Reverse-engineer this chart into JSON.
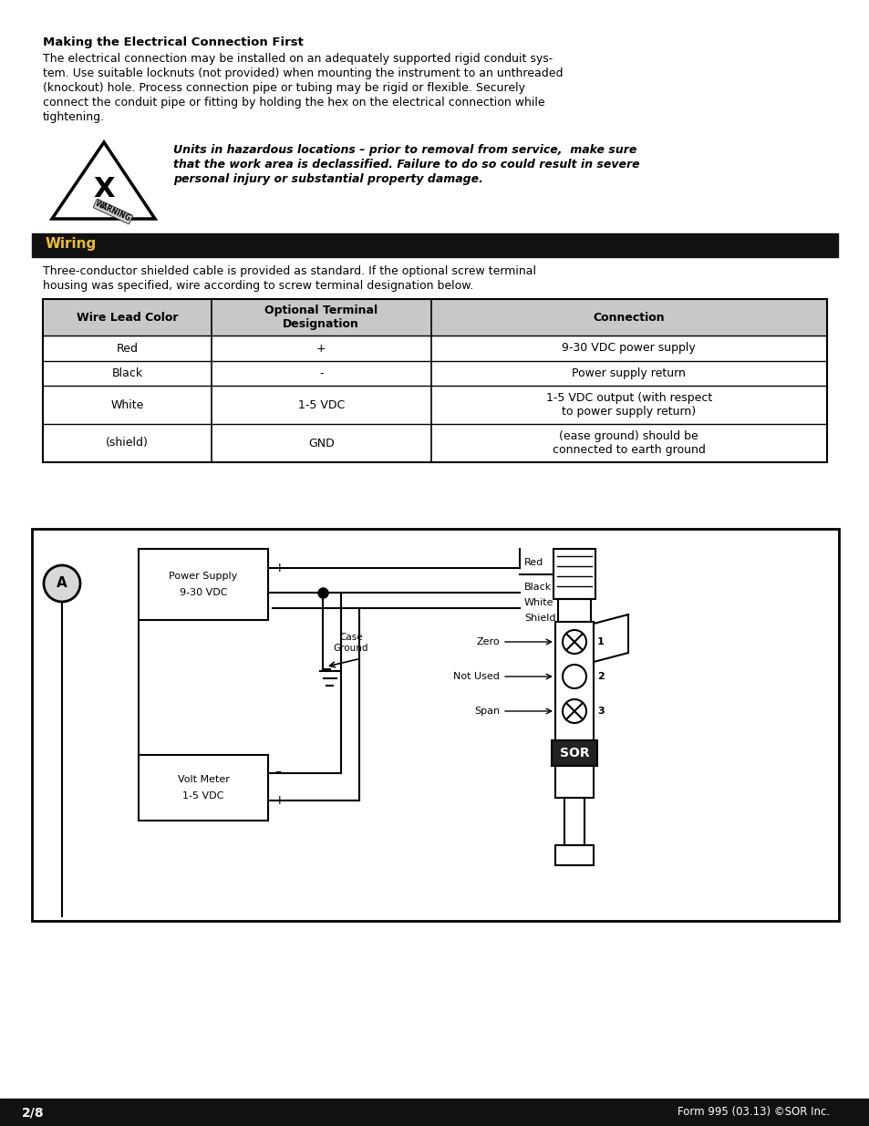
{
  "page_bg": "#ffffff",
  "section_title": "Making the Electrical Connection First",
  "body_line1": "The electrical connection may be installed on an adequately supported rigid conduit sys-",
  "body_line2": "tem. Use suitable locknuts (not provided) when mounting the instrument to an unthreaded",
  "body_line3": "(knockout) hole. Process connection pipe or tubing may be rigid or flexible. Securely",
  "body_line4": "connect the conduit pipe or fitting by holding the hex on the electrical connection while",
  "body_line5": "tightening.",
  "warning_line1": "Units in hazardous locations – prior to removal from service,  make sure",
  "warning_line2": "that the work area is declassified. Failure to do so could result in severe",
  "warning_line3": "personal injury or substantial property damage.",
  "wiring_header": "Wiring",
  "wiring_header_bg": "#111111",
  "wiring_header_fg": "#f0c020",
  "wiring_body1": "Three-conductor shielded cable is provided as standard. If the optional screw terminal",
  "wiring_body2": "housing was specified, wire according to screw terminal designation below.",
  "table_headers": [
    "Wire Lead Color",
    "Optional Terminal\nDesignation",
    "Connection"
  ],
  "table_rows": [
    [
      "Red",
      "+",
      "9-30 VDC power supply"
    ],
    [
      "Black",
      "-",
      "Power supply return"
    ],
    [
      "White",
      "1-5 VDC",
      "1-5 VDC output (with respect\nto power supply return)"
    ],
    [
      "(shield)",
      "GND",
      "(ease ground) should be\nconnected to earth ground"
    ]
  ],
  "footer_left": "2/8",
  "footer_right": "Form 995 (03.13) ©SOR Inc.",
  "footer_bg": "#111111",
  "footer_fg": "#ffffff"
}
